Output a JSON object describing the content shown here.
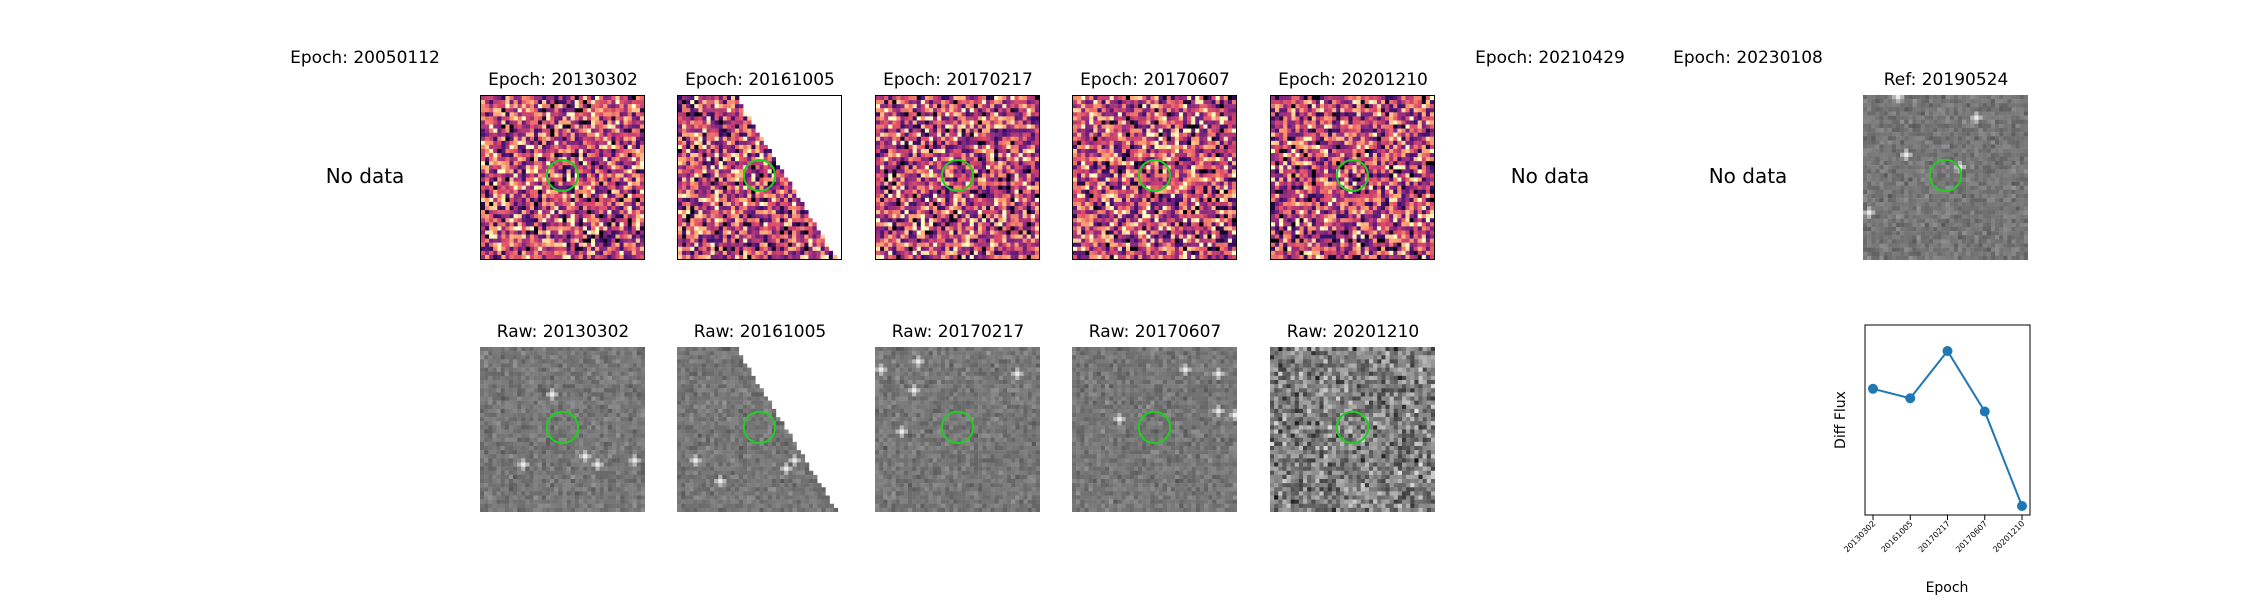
{
  "top_titles": [
    "Epoch: 20050112",
    "Epoch: 20130302",
    "Epoch: 20161005",
    "Epoch: 20170217",
    "Epoch: 20170607",
    "Epoch: 20201210",
    "Epoch: 20210429",
    "Epoch: 20230108",
    "Ref: 20190524"
  ],
  "raw_titles": [
    "Raw: 20130302",
    "Raw: 20161005",
    "Raw: 20170217",
    "Raw: 20170607",
    "Raw: 20201210"
  ],
  "no_data_label": "No data",
  "colors": {
    "circle": "#22cc22",
    "line": "#1f77b4",
    "cmap_diff": [
      "#000004",
      "#3b0f70",
      "#8c2981",
      "#de4968",
      "#fe9f6d",
      "#fcfdbf"
    ]
  },
  "chart_data": {
    "type": "line",
    "x": [
      "20130302",
      "20161005",
      "20170217",
      "20170607",
      "20201210"
    ],
    "values": [
      0.62,
      0.57,
      0.82,
      0.5,
      0.0
    ],
    "xlabel": "Epoch",
    "ylabel": "Diff Flux",
    "grid": false
  }
}
